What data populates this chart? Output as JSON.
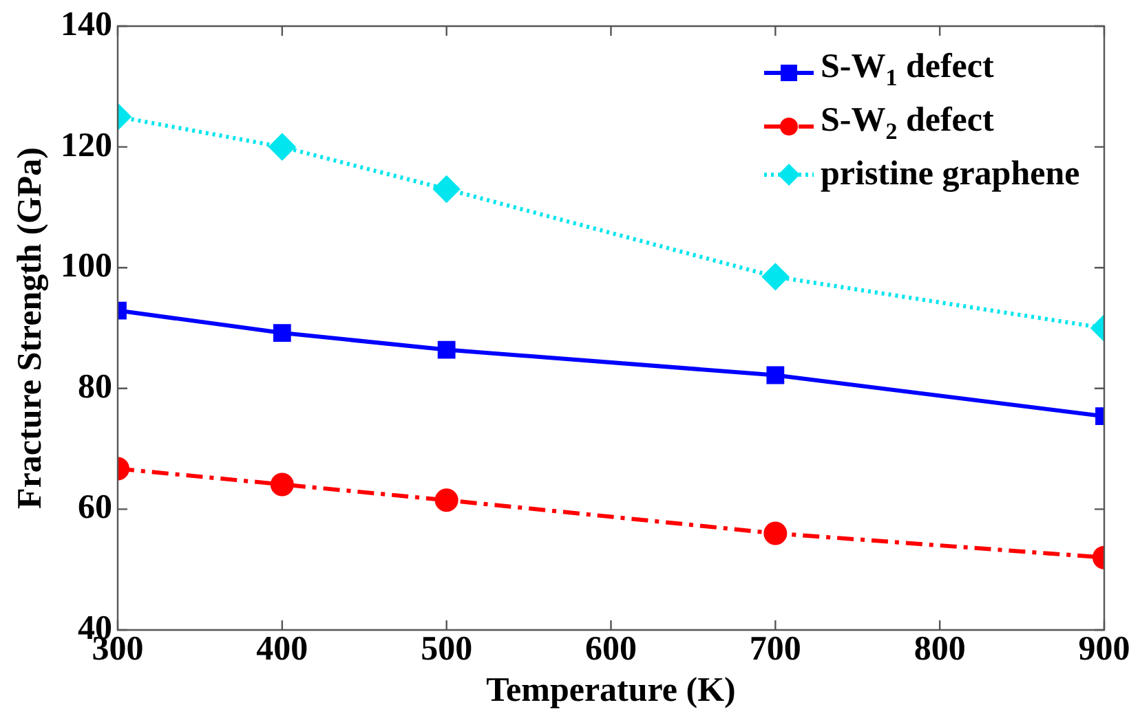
{
  "chart_data": {
    "type": "line",
    "xlabel": "Temperature (K)",
    "ylabel": "Fracture Strength (GPa)",
    "x": [
      300,
      400,
      500,
      700,
      900
    ],
    "series": [
      {
        "name": "S-W$_{1}$ defect",
        "color": "#0000ff",
        "values": [
          92.9,
          89.2,
          86.4,
          82.2,
          75.4
        ],
        "marker": "square",
        "line_style": "solid"
      },
      {
        "name": "S-W$_{2}$ defect",
        "color": "#ff0000",
        "values": [
          66.7,
          64.1,
          61.5,
          56,
          52
        ],
        "marker": "circle",
        "line_style": "dashdot"
      },
      {
        "name": "pristine graphene",
        "color": "#00e5ee",
        "values": [
          125,
          120,
          113,
          98.5,
          90
        ],
        "marker": "diamond",
        "line_style": "dotted"
      }
    ],
    "xlim": [
      300,
      900
    ],
    "xticks": [
      300,
      400,
      500,
      600,
      700,
      800,
      900
    ],
    "ylim": [
      40,
      140
    ],
    "yticks": [
      40,
      60,
      80,
      100,
      120,
      140
    ],
    "grid": false,
    "legend": "top right"
  }
}
